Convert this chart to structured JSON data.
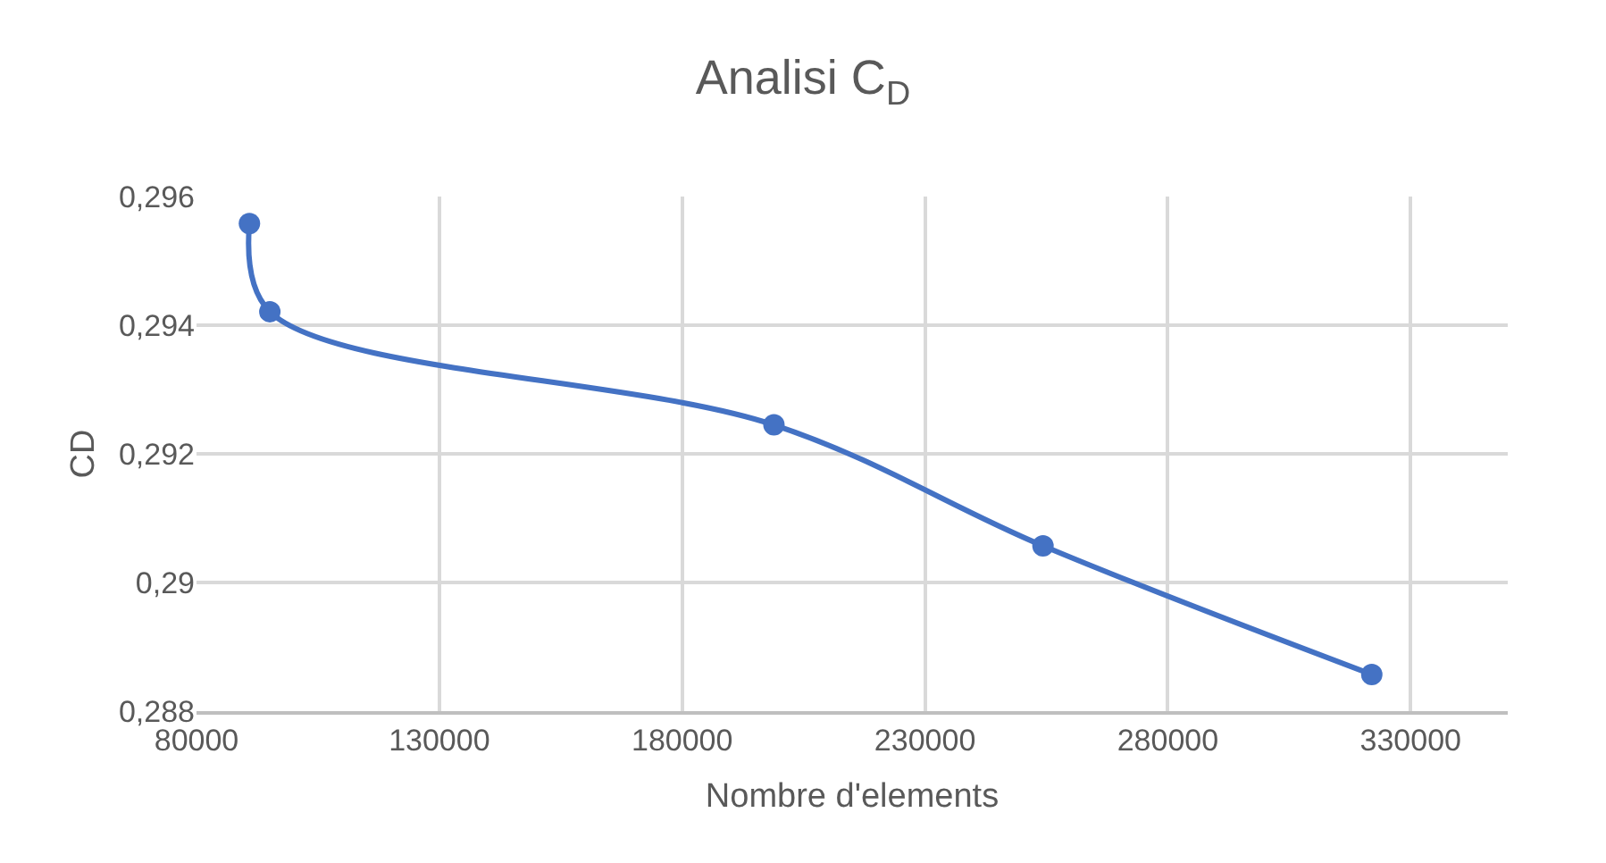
{
  "chart_data": {
    "type": "line",
    "title": "Analisi C$_{D}$",
    "xlabel": "Nombre d'elements",
    "ylabel": "CD",
    "x": [
      90900,
      95100,
      198900,
      254300,
      322000
    ],
    "series": [
      {
        "color": "#4472c4",
        "values": [
          0.29558,
          0.29421,
          0.29245,
          0.29057,
          0.28857
        ]
      }
    ],
    "xlim": [
      80000,
      350000
    ],
    "xticks": [
      80000,
      130000,
      180000,
      230000,
      280000,
      330000
    ],
    "ylim": [
      0.288,
      0.296
    ],
    "yticks": [
      {
        "value": 0.288,
        "label": "0,288"
      },
      {
        "value": 0.29,
        "label": "0,29"
      },
      {
        "value": 0.292,
        "label": "0,292"
      },
      {
        "value": 0.294,
        "label": "0,294"
      },
      {
        "value": 0.296,
        "label": "0,296"
      }
    ],
    "grid": true,
    "marker": "circle",
    "line_style": "solid"
  }
}
